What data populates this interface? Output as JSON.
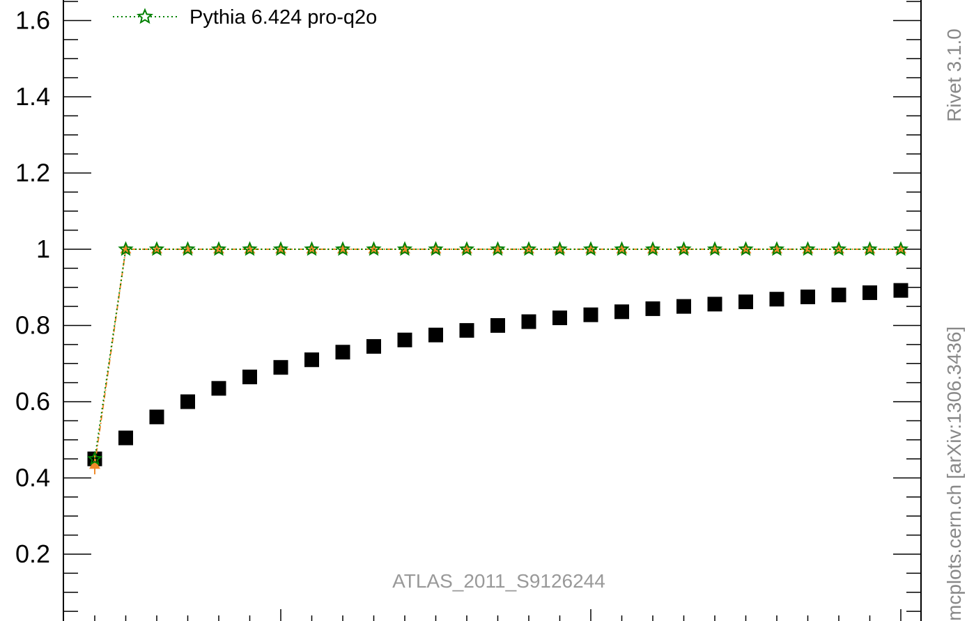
{
  "chart_data": {
    "type": "scatter",
    "title": "",
    "xlabel": "",
    "ylabel": "",
    "ylim": [
      0,
      1.65
    ],
    "y_ticks": [
      "0.2",
      "0.4",
      "0.6",
      "0.8",
      "1",
      "1.2",
      "1.4",
      "1.6"
    ],
    "x_bins": 27,
    "legend": {
      "position": "top-left",
      "entries": [
        "Pythia 6.424 pro-q2o"
      ]
    },
    "annotation": "ATLAS_2011_S9126244",
    "side_labels": {
      "top": "Rivet 3.1.0",
      "bottom": "mcplots.cern.ch [arXiv:1306.3436]"
    },
    "series": [
      {
        "name": "",
        "role": "data",
        "color": "#000000",
        "marker": "square",
        "values": [
          0.45,
          0.505,
          0.56,
          0.6,
          0.635,
          0.665,
          0.69,
          0.71,
          0.73,
          0.745,
          0.762,
          0.775,
          0.787,
          0.8,
          0.81,
          0.82,
          0.828,
          0.836,
          0.844,
          0.85,
          0.856,
          0.862,
          0.869,
          0.875,
          0.88,
          0.886,
          0.892
        ]
      },
      {
        "name": "",
        "role": "mc-band",
        "color": "#f08a2a",
        "marker": "triangle",
        "values": [
          0.435,
          1,
          1,
          1,
          1,
          1,
          1,
          1,
          1,
          1,
          1,
          1,
          1,
          1,
          1,
          1,
          1,
          1,
          1,
          1,
          1,
          1,
          1,
          1,
          1,
          1,
          1
        ]
      },
      {
        "name": "Pythia 6.424 pro-q2o",
        "role": "mc",
        "color": "#008000",
        "marker": "star",
        "values": [
          0.45,
          1,
          1,
          1,
          1,
          1,
          1,
          1,
          1,
          1,
          1,
          1,
          1,
          1,
          1,
          1,
          1,
          1,
          1,
          1,
          1,
          1,
          1,
          1,
          1,
          1,
          1
        ]
      }
    ]
  }
}
